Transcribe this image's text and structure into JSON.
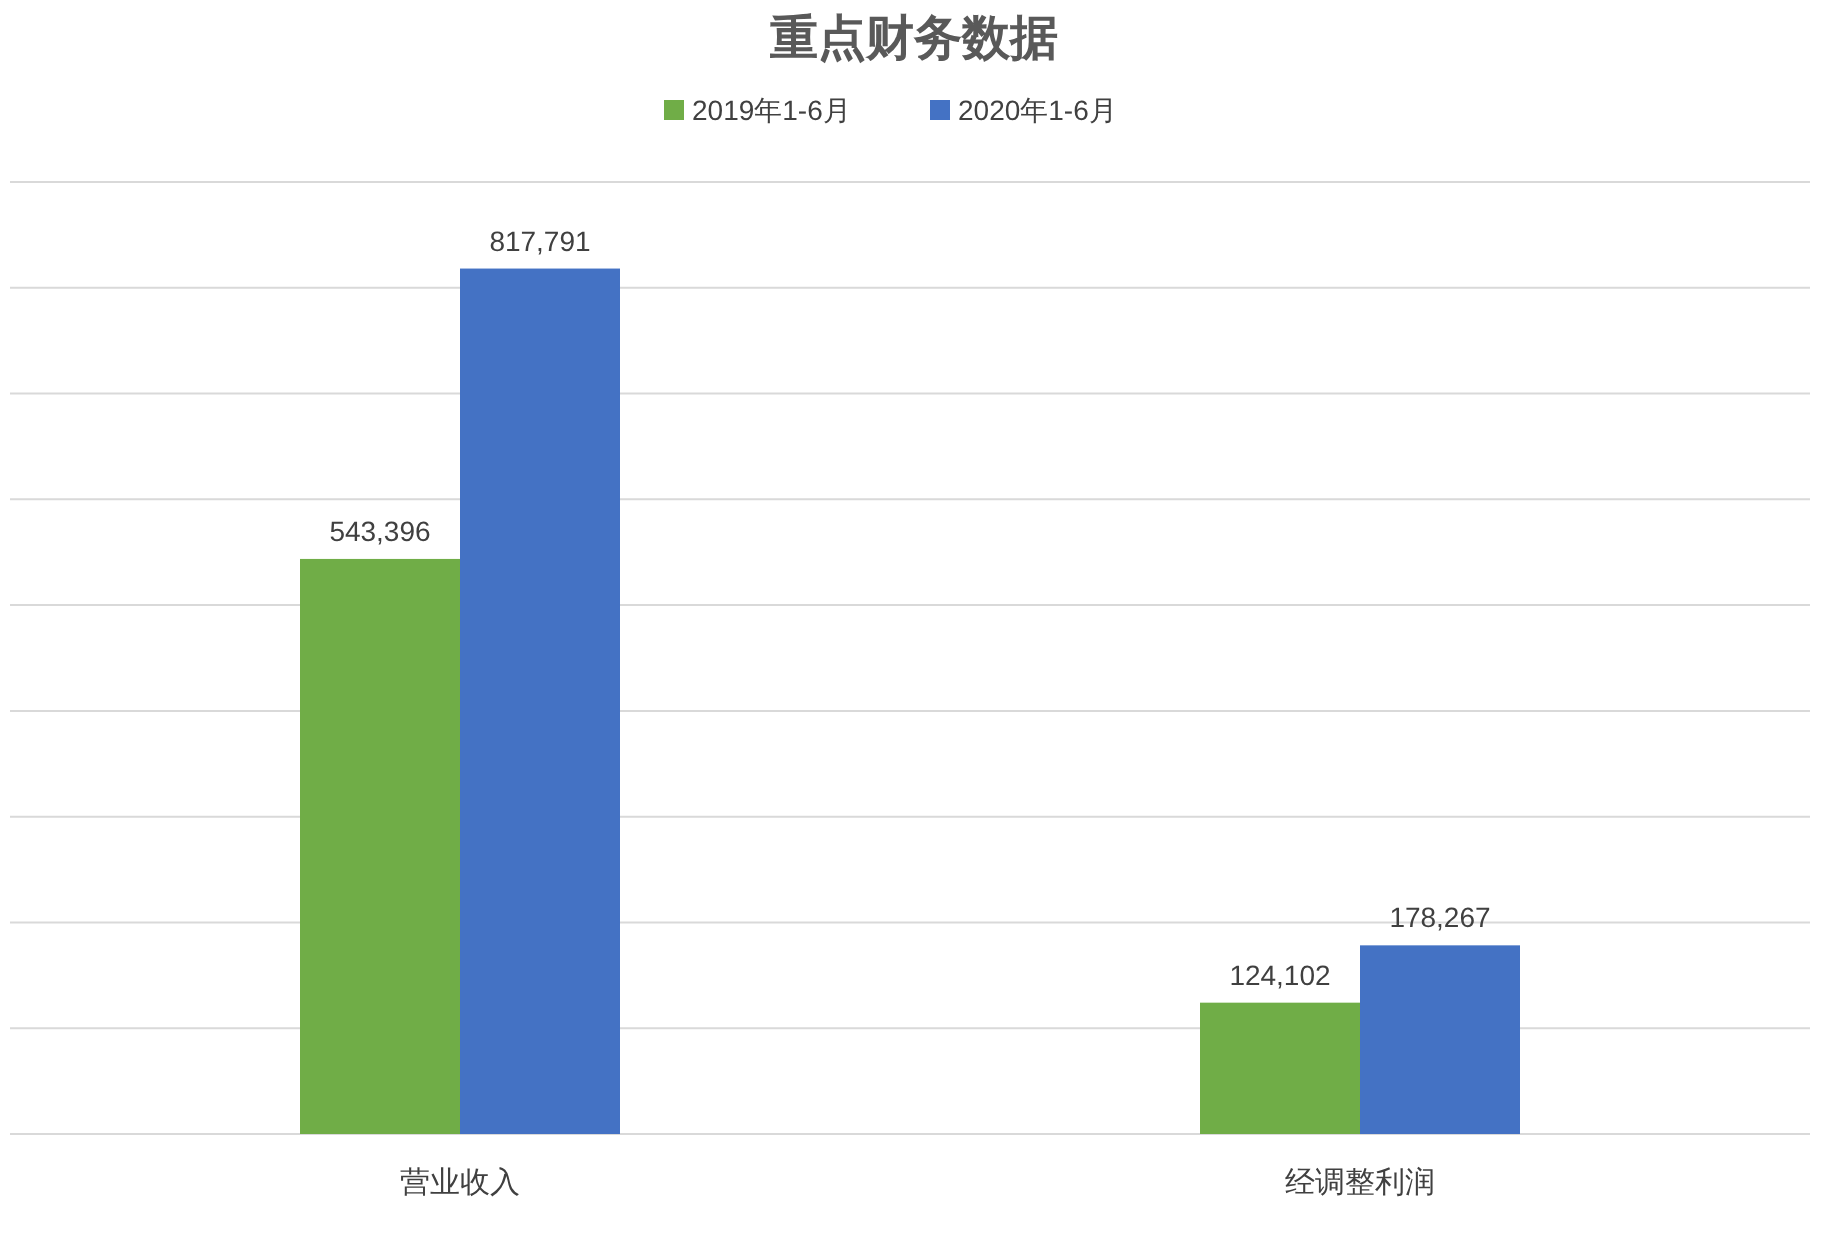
{
  "chart_data": {
    "type": "bar",
    "title": "重点财务数据",
    "categories": [
      "营业收入",
      "经调整利润"
    ],
    "series": [
      {
        "name": "2019年1-6月",
        "color": "#70ad47",
        "values": [
          543396,
          124102
        ],
        "value_labels": [
          "543,396",
          "124,102"
        ]
      },
      {
        "name": "2020年1-6月",
        "color": "#4472c4",
        "values": [
          817791,
          178267
        ],
        "value_labels": [
          "817,791",
          "178,267"
        ]
      }
    ],
    "grid": "y",
    "tick_labels": "x",
    "legend": "top"
  }
}
